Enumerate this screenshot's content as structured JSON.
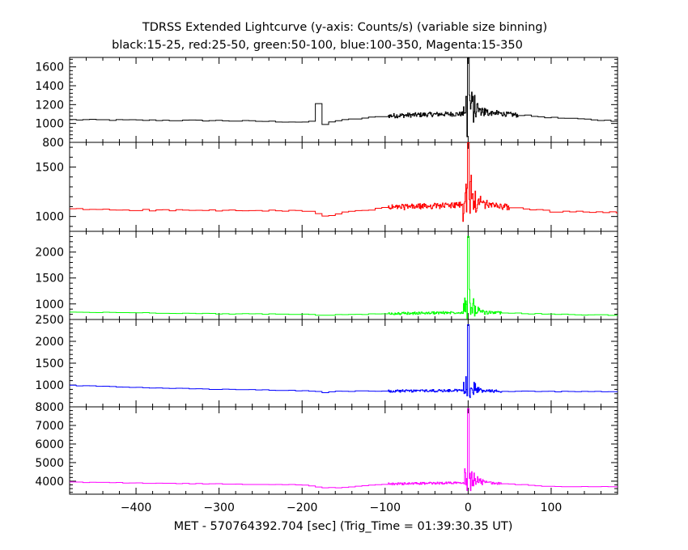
{
  "chart_data": {
    "type": "line",
    "title": "TDRSS Extended Lightcurve (y-axis: Counts/s) (variable size binning)",
    "subtitle": "black:15-25, red:25-50, green:50-100, blue:100-350, Magenta:15-350",
    "xlabel": "MET - 570764392.704 [sec] (Trig_Time = 01:39:30.35 UT)",
    "xlim": [
      -480,
      180
    ],
    "x_ticks": [
      -400,
      -300,
      -200,
      -100,
      0,
      100
    ],
    "x_tick_labels": [
      "−400",
      "−300",
      "−200",
      "−100",
      "0",
      "100"
    ],
    "panels": [
      {
        "band": "black: 15-25",
        "color": "#000000",
        "ylim": [
          800,
          1700
        ],
        "y_ticks": [
          800,
          1000,
          1200,
          1400,
          1600
        ],
        "y_tick_labels": [
          "800",
          "1000",
          "1200",
          "1400",
          "1600"
        ],
        "baseline": [
          [
            -480,
            1040
          ],
          [
            -400,
            1035
          ],
          [
            -300,
            1030
          ],
          [
            -200,
            1015
          ],
          [
            -185,
            1020
          ],
          [
            -175,
            1020
          ],
          [
            -165,
            1020
          ],
          [
            -160,
            1030
          ],
          [
            -100,
            1080
          ],
          [
            -30,
            1100
          ],
          [
            0,
            1100
          ],
          [
            30,
            1110
          ],
          [
            100,
            1060
          ],
          [
            180,
            1025
          ]
        ],
        "step_features": [
          [
            -190,
            -180,
            1210
          ],
          [
            -180,
            -170,
            990
          ]
        ],
        "noise_region": [
          -100,
          60
        ],
        "noise_amp": 25,
        "peak": [
          0,
          1700
        ],
        "trough": [
          0,
          860
        ],
        "decay_amp": 600,
        "decay_tau": 9
      },
      {
        "band": "red: 25-50",
        "color": "#ff0000",
        "ylim": [
          850,
          1750
        ],
        "y_ticks": [
          1000,
          1500
        ],
        "y_tick_labels": [
          "1000",
          "1500"
        ],
        "baseline": [
          [
            -480,
            1075
          ],
          [
            -400,
            1065
          ],
          [
            -300,
            1060
          ],
          [
            -200,
            1055
          ],
          [
            -185,
            1040
          ],
          [
            -175,
            1000
          ],
          [
            -160,
            1030
          ],
          [
            -100,
            1090
          ],
          [
            -30,
            1110
          ],
          [
            0,
            1120
          ],
          [
            30,
            1110
          ],
          [
            100,
            1050
          ],
          [
            180,
            1040
          ]
        ],
        "step_features": [],
        "noise_region": [
          -100,
          50
        ],
        "noise_amp": 30,
        "peak": [
          0,
          1790
        ],
        "trough": [
          -5,
          950
        ],
        "decay_amp": 600,
        "decay_tau": 8
      },
      {
        "band": "green: 50-100",
        "color": "#00ff00",
        "ylim": [
          700,
          2400
        ],
        "y_ticks": [
          1000,
          1500,
          2000
        ],
        "y_tick_labels": [
          "1000",
          "1500",
          "2000"
        ],
        "baseline": [
          [
            -480,
            840
          ],
          [
            -400,
            830
          ],
          [
            -300,
            810
          ],
          [
            -200,
            800
          ],
          [
            -175,
            780
          ],
          [
            -160,
            790
          ],
          [
            -100,
            810
          ],
          [
            -30,
            830
          ],
          [
            0,
            840
          ],
          [
            30,
            830
          ],
          [
            100,
            800
          ],
          [
            180,
            780
          ]
        ],
        "step_features": [],
        "noise_region": [
          -100,
          40
        ],
        "noise_amp": 25,
        "peak": [
          0,
          2300
        ],
        "trough": [
          0,
          720
        ],
        "decay_amp": 900,
        "decay_tau": 7
      },
      {
        "band": "blue: 100-350",
        "color": "#0000ff",
        "ylim": [
          500,
          2500
        ],
        "y_ticks": [
          1000,
          1500,
          2000,
          2500
        ],
        "y_tick_labels": [
          "1000",
          "1500",
          "2000",
          "2500"
        ],
        "baseline": [
          [
            -480,
            990
          ],
          [
            -400,
            940
          ],
          [
            -300,
            900
          ],
          [
            -200,
            870
          ],
          [
            -175,
            830
          ],
          [
            -160,
            860
          ],
          [
            -100,
            860
          ],
          [
            -30,
            870
          ],
          [
            0,
            880
          ],
          [
            30,
            860
          ],
          [
            100,
            850
          ],
          [
            180,
            850
          ]
        ],
        "step_features": [],
        "noise_region": [
          -100,
          40
        ],
        "noise_amp": 30,
        "peak": [
          0,
          2380
        ],
        "trough": [
          0,
          750
        ],
        "decay_amp": 800,
        "decay_tau": 7
      },
      {
        "band": "magenta: 15-350",
        "color": "#ff00ff",
        "ylim": [
          3300,
          8000
        ],
        "y_ticks": [
          4000,
          5000,
          6000,
          7000,
          8000
        ],
        "y_tick_labels": [
          "4000",
          "5000",
          "6000",
          "7000",
          "8000"
        ],
        "baseline": [
          [
            -480,
            3950
          ],
          [
            -400,
            3900
          ],
          [
            -300,
            3850
          ],
          [
            -200,
            3800
          ],
          [
            -175,
            3640
          ],
          [
            -160,
            3650
          ],
          [
            -100,
            3850
          ],
          [
            -30,
            3900
          ],
          [
            0,
            3950
          ],
          [
            30,
            3900
          ],
          [
            100,
            3700
          ],
          [
            180,
            3700
          ]
        ],
        "step_features": [],
        "noise_region": [
          -100,
          40
        ],
        "noise_amp": 60,
        "peak": [
          0,
          7900
        ],
        "trough": [
          0,
          3500
        ],
        "decay_amp": 2200,
        "decay_tau": 7
      }
    ]
  }
}
